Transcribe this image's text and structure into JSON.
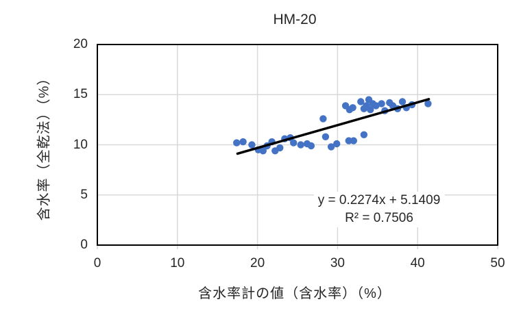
{
  "chart_data": {
    "type": "scatter",
    "title": "HM-20",
    "xlabel": "含水率計の値（含水率）（%）",
    "ylabel": "含水率（全乾法）（%）",
    "xlim": [
      0,
      50
    ],
    "ylim": [
      0,
      20
    ],
    "x_ticks": [
      0,
      10,
      20,
      30,
      40,
      50
    ],
    "y_ticks": [
      0,
      5,
      10,
      15,
      20
    ],
    "grid": true,
    "points": [
      [
        17.4,
        10.2
      ],
      [
        18.2,
        10.3
      ],
      [
        19.3,
        10.0
      ],
      [
        20.1,
        9.5
      ],
      [
        20.7,
        9.4
      ],
      [
        21.2,
        9.9
      ],
      [
        21.8,
        10.3
      ],
      [
        22.2,
        9.4
      ],
      [
        22.8,
        9.7
      ],
      [
        23.4,
        10.6
      ],
      [
        24.1,
        10.7
      ],
      [
        24.5,
        10.2
      ],
      [
        25.4,
        10.0
      ],
      [
        26.2,
        10.1
      ],
      [
        26.7,
        9.9
      ],
      [
        28.2,
        12.6
      ],
      [
        28.5,
        10.8
      ],
      [
        29.2,
        9.8
      ],
      [
        29.9,
        10.1
      ],
      [
        31.4,
        10.4
      ],
      [
        32.0,
        10.4
      ],
      [
        33.3,
        11.0
      ],
      [
        31.0,
        13.9
      ],
      [
        31.5,
        13.5
      ],
      [
        31.9,
        13.7
      ],
      [
        32.9,
        14.3
      ],
      [
        33.3,
        13.6
      ],
      [
        33.6,
        13.9
      ],
      [
        33.9,
        14.5
      ],
      [
        34.1,
        13.5
      ],
      [
        34.4,
        14.1
      ],
      [
        34.8,
        13.9
      ],
      [
        35.5,
        14.1
      ],
      [
        35.9,
        13.4
      ],
      [
        36.5,
        14.2
      ],
      [
        36.9,
        13.9
      ],
      [
        37.5,
        13.6
      ],
      [
        38.1,
        14.3
      ],
      [
        38.6,
        13.7
      ],
      [
        39.3,
        14.0
      ],
      [
        41.3,
        14.1
      ]
    ],
    "trendline": {
      "slope": 0.2274,
      "intercept": 5.1409,
      "r_squared": 0.7506,
      "x_start": 17.5,
      "x_end": 41.4,
      "equation_label": "y = 0.2274x + 5.1409",
      "r2_label": "R² = 0.7506"
    },
    "legend": "none",
    "colors": {
      "marker": "#4472C4",
      "trendline": "#000000",
      "gridline": "#D9D9D9",
      "axis_border": "#000000",
      "text": "#262626",
      "background": "#FFFFFF"
    }
  }
}
